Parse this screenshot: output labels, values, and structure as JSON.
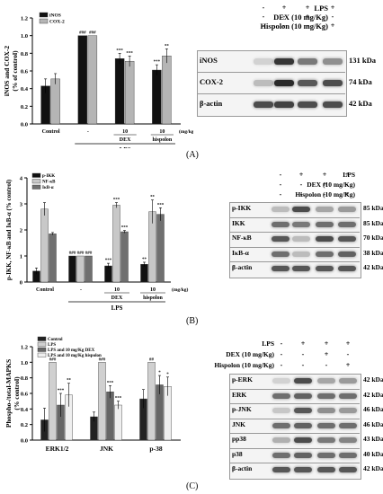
{
  "panels": [
    "(A)",
    "(B)",
    "(C)"
  ],
  "chartA": {
    "ylabel": "iNOS and COX-2\n(% of control)",
    "ylabel_lines": [
      "iNOS and COX-2",
      "(% of control)"
    ],
    "yticks": [
      "0.0",
      "0.2",
      "0.4",
      "0.6",
      "0.8",
      "1.0",
      "1.2"
    ],
    "legend": [
      "iNOS",
      "COX-2"
    ],
    "xlabels": [
      "Control",
      "-",
      "10",
      "10"
    ],
    "group_labels": [
      "DEX",
      "hispolon"
    ],
    "unit": "(mg/kg)",
    "lps": "LPS",
    "sig": [
      [
        "",
        ""
      ],
      [
        "###",
        "###"
      ],
      [
        "***",
        "***"
      ],
      [
        "***",
        "**"
      ]
    ]
  },
  "chartB": {
    "ylabel": "p-IKK, NF-κB and IκB-α (% control)",
    "yticks": [
      "0",
      "1",
      "2",
      "3",
      "4"
    ],
    "legend": [
      "p-IKK",
      "NF-κB",
      "IκB-α"
    ],
    "xlabels": [
      "Control",
      "-",
      "10",
      "10"
    ],
    "group_labels": [
      "DEX",
      "hispolon"
    ],
    "unit": "(mg/kg)",
    "lps": "LPS",
    "sig": [
      [
        "",
        "",
        ""
      ],
      [
        "###",
        "###",
        "###"
      ],
      [
        "***",
        "***",
        "***"
      ],
      [
        "**",
        "**",
        "***"
      ]
    ]
  },
  "chartC": {
    "ylabel_lines": [
      "Phospho-/total-MAPKS",
      "(% control)"
    ],
    "yticks": [
      "0.0",
      "0.2",
      "0.4",
      "0.6",
      "0.8",
      "1.0",
      "1.2"
    ],
    "legend": [
      "Control",
      "LPS",
      "LPS and 10 mg/Kg DEX",
      "LPS and 10 mg/Kg hispolon"
    ],
    "categories": [
      "ERK1/2",
      "JNK",
      "p-38"
    ],
    "sig": [
      [
        "",
        "###",
        "***",
        "**"
      ],
      [
        "",
        "###",
        "***",
        "***"
      ],
      [
        "",
        "##",
        "*",
        "*"
      ]
    ]
  },
  "chart_data": [
    {
      "type": "bar",
      "categories": [
        "Control",
        "LPS",
        "LPS + DEX 10",
        "LPS + hispolon 10"
      ],
      "series": [
        {
          "name": "iNOS",
          "values": [
            0.43,
            1.0,
            0.74,
            0.61
          ],
          "errors": [
            0.08,
            0.0,
            0.06,
            0.06
          ]
        },
        {
          "name": "COX-2",
          "values": [
            0.51,
            1.0,
            0.71,
            0.77
          ],
          "errors": [
            0.06,
            0.0,
            0.06,
            0.08
          ]
        }
      ],
      "ylabel": "iNOS and COX-2\n(% of control)",
      "ylim": [
        0,
        1.2
      ],
      "colors": [
        "#111111",
        "#b5b5b5"
      ]
    },
    {
      "type": "bar",
      "categories": [
        "Control",
        "LPS",
        "LPS + DEX 10",
        "LPS + hispolon 10"
      ],
      "series": [
        {
          "name": "p-IKK",
          "values": [
            0.42,
            1.0,
            0.62,
            0.68
          ],
          "errors": [
            0.12,
            0.0,
            0.1,
            0.08
          ]
        },
        {
          "name": "NF-κB",
          "values": [
            2.8,
            1.0,
            2.95,
            2.7
          ],
          "errors": [
            0.25,
            0.0,
            0.1,
            0.45
          ]
        },
        {
          "name": "IκB-α",
          "values": [
            1.85,
            1.0,
            1.93,
            2.6
          ],
          "errors": [
            0.05,
            0.0,
            0.05,
            0.25
          ]
        }
      ],
      "ylabel": "p-IKK, NF-κB and IκB-α (% control)",
      "ylim": [
        0,
        4
      ],
      "colors": [
        "#111111",
        "#c8c8c8",
        "#707070"
      ]
    },
    {
      "type": "bar",
      "categories": [
        "ERK1/2",
        "JNK",
        "p-38"
      ],
      "series": [
        {
          "name": "Control",
          "values": [
            0.26,
            0.3,
            0.53
          ],
          "errors": [
            0.15,
            0.06,
            0.12
          ]
        },
        {
          "name": "LPS",
          "values": [
            1.0,
            1.0,
            1.0
          ],
          "errors": [
            0.0,
            0.0,
            0.0
          ]
        },
        {
          "name": "LPS and 10 mg/Kg DEX",
          "values": [
            0.45,
            0.62,
            0.71
          ],
          "errors": [
            0.15,
            0.08,
            0.12
          ]
        },
        {
          "name": "LPS and 10 mg/Kg hispolon",
          "values": [
            0.58,
            0.45,
            0.69
          ],
          "errors": [
            0.15,
            0.05,
            0.12
          ]
        }
      ],
      "ylabel": "Phospho-/total-MAPKS\n(% control)",
      "ylim": [
        0,
        1.2
      ],
      "colors": [
        "#222222",
        "#d0d0d0",
        "#666666",
        "#efefef"
      ]
    }
  ],
  "blotA": {
    "header": [
      "LPS",
      "DEX (10 mg/Kg)",
      "Hispolon (10 mg/Kg)"
    ],
    "signs": [
      [
        "-",
        "+",
        "+",
        "+"
      ],
      [
        "-",
        "-",
        "+",
        "-"
      ],
      [
        "-",
        "-",
        "-",
        "+"
      ]
    ],
    "rows": [
      {
        "name": "iNOS",
        "kda": "131 kDa"
      },
      {
        "name": "COX-2",
        "kda": "74 kDa"
      },
      {
        "name": "β-actin",
        "kda": "42 kDa"
      }
    ]
  },
  "blotB": {
    "header": [
      "LPS",
      "DEX (10 mg/Kg)",
      "Hispolon (10 mg/Kg)"
    ],
    "signs": [
      [
        "-",
        "+",
        "+",
        "+"
      ],
      [
        "-",
        "-",
        "+",
        "-"
      ],
      [
        "-",
        "-",
        "-",
        "+"
      ]
    ],
    "rows": [
      {
        "name": "p-IKK",
        "kda": "85 kDa"
      },
      {
        "name": "IKK",
        "kda": "85 kDa"
      },
      {
        "name": "NF-κB",
        "kda": "70 kDa"
      },
      {
        "name": "IκB-α",
        "kda": "38 kDa"
      },
      {
        "name": "β-actin",
        "kda": "42 kDa"
      }
    ]
  },
  "blotC": {
    "header": [
      "LPS",
      "DEX (10 mg/Kg)",
      "Hispolon (10 mg/Kg)"
    ],
    "signs": [
      [
        "-",
        "+",
        "+",
        "+"
      ],
      [
        "-",
        "-",
        "+",
        "-"
      ],
      [
        "-",
        "-",
        "-",
        "+"
      ]
    ],
    "rows": [
      {
        "name": "p-ERK",
        "kda": "42 kDa"
      },
      {
        "name": "ERK",
        "kda": "42 kDa"
      },
      {
        "name": "p-JNK",
        "kda": "46 kDa"
      },
      {
        "name": "JNK",
        "kda": "46 kDa"
      },
      {
        "name": "pp38",
        "kda": "43 kDa"
      },
      {
        "name": "p38",
        "kda": "40 kDa"
      },
      {
        "name": "β-actin",
        "kda": "42 kDa"
      }
    ]
  }
}
